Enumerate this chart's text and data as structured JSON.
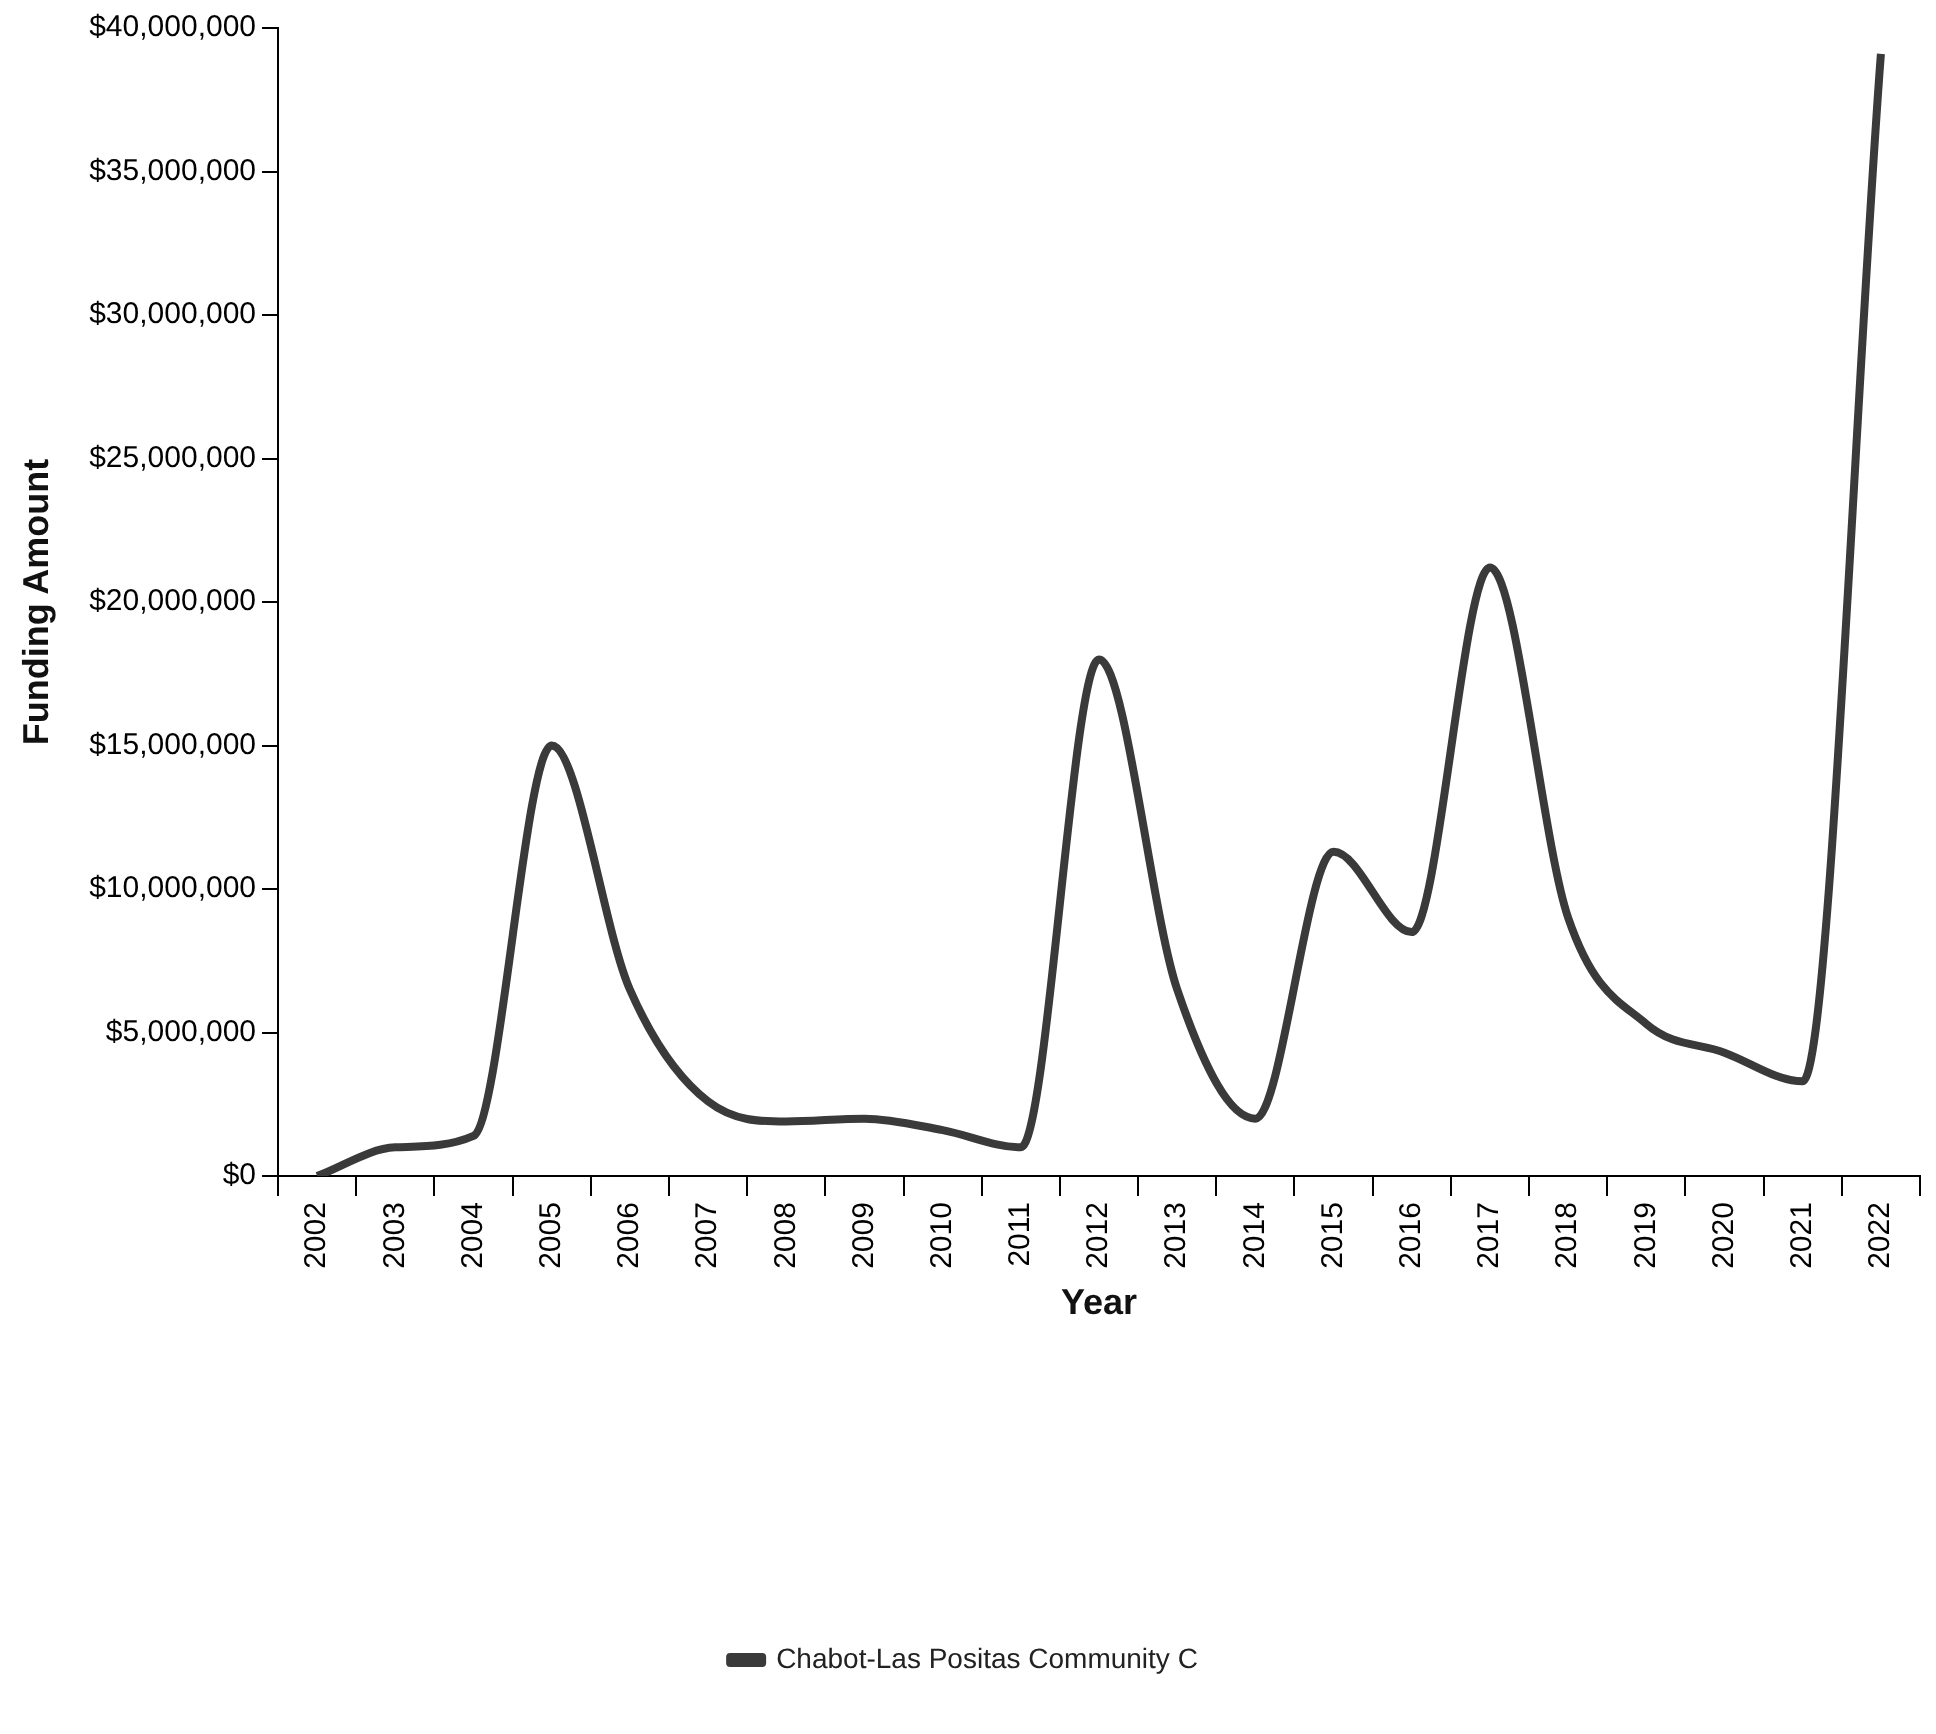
{
  "chart_data": {
    "type": "line",
    "xlabel": "Year",
    "ylabel": "Funding Amount",
    "categories": [
      "2002",
      "2003",
      "2004",
      "2005",
      "2006",
      "2007",
      "2008",
      "2009",
      "2010",
      "2011",
      "2012",
      "2013",
      "2014",
      "2015",
      "2016",
      "2017",
      "2018",
      "2019",
      "2020",
      "2021",
      "2022"
    ],
    "series": [
      {
        "name": "Chabot-Las Positas Community C",
        "color": "#3a3a3a",
        "values": [
          0,
          1000000,
          1400000,
          15000000,
          6500000,
          2600000,
          1900000,
          2000000,
          1600000,
          1000000,
          18000000,
          6500000,
          2000000,
          11300000,
          8500000,
          21200000,
          9000000,
          5300000,
          4300000,
          3300000,
          39100000
        ]
      }
    ],
    "ylim": [
      0,
      40000000
    ],
    "yticks": [
      {
        "value": 0,
        "label": "$0"
      },
      {
        "value": 5000000,
        "label": "$5,000,000"
      },
      {
        "value": 10000000,
        "label": "$10,000,000"
      },
      {
        "value": 15000000,
        "label": "$15,000,000"
      },
      {
        "value": 20000000,
        "label": "$20,000,000"
      },
      {
        "value": 25000000,
        "label": "$25,000,000"
      },
      {
        "value": 30000000,
        "label": "$30,000,000"
      },
      {
        "value": 35000000,
        "label": "$35,000,000"
      },
      {
        "value": 40000000,
        "label": "$40,000,000"
      }
    ],
    "grid": false,
    "legend": "bottom",
    "marker": "none",
    "line_style": "solid"
  }
}
